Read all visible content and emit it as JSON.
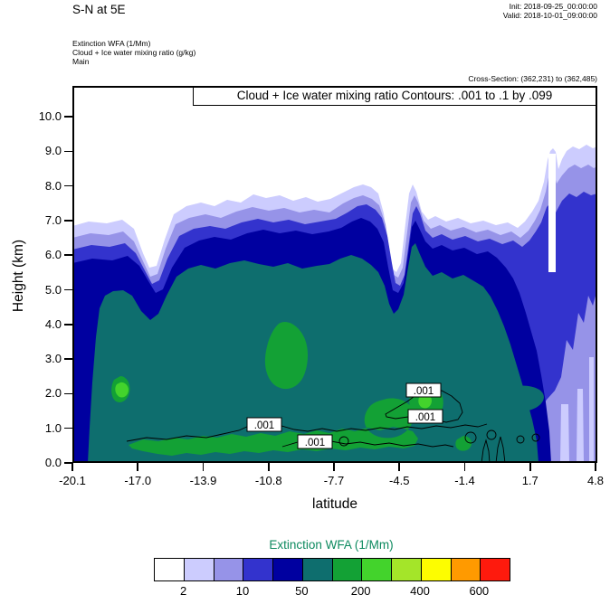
{
  "header": {
    "title": "S-N at 5E",
    "init_line": "Init: 2018-09-25_00:00:00",
    "valid_line": "Valid: 2018-10-01_09:00:00",
    "field_lines": [
      "Extinction WFA  (1/Mm)",
      "Cloud + Ice water mixing ratio   (g/kg)",
      "Main"
    ],
    "cross_section_line": "Cross-Section: (362,231) to (362,485)"
  },
  "plot": {
    "contour_info": "Cloud + Ice water mixing ratio Contours: .001 to .1 by .099",
    "xlabel": "latitude",
    "ylabel": "Height (km)",
    "y_ticks": [
      "0.0",
      "1.0",
      "2.0",
      "3.0",
      "4.0",
      "5.0",
      "6.0",
      "7.0",
      "8.0",
      "9.0",
      "10.0"
    ],
    "x_ticks": [
      "-20.1",
      "-17.0",
      "-13.9",
      "-10.8",
      "-7.7",
      "-4.5",
      "-1.4",
      "1.7",
      "4.8"
    ],
    "contour_labels": [
      ".001",
      ".001",
      ".001",
      ".001"
    ]
  },
  "legend": {
    "title": "Extinction WFA  (1/Mm)",
    "title_color": "#0d8a5f",
    "tick_labels": [
      "2",
      "10",
      "50",
      "200",
      "400",
      "600"
    ],
    "colors": [
      "#ffffff",
      "#ccccfe",
      "#9693e8",
      "#3333cd",
      "#0000a0",
      "#0e6e6e",
      "#13a135",
      "#43d32c",
      "#a4e529",
      "#fdfd00",
      "#ff9a00",
      "#fe1a0d"
    ]
  },
  "chart_data": {
    "type": "heatmap",
    "subtype": "vertical_cross_section_filled_contours",
    "title": "S-N at 5E",
    "init_time": "2018-09-25_00:00:00",
    "valid_time": "2018-10-01_09:00:00",
    "cross_section_gridpoints": "(362,231) to (362,485)",
    "xlabel": "latitude",
    "ylabel": "Height (km)",
    "xlim": [
      -20.1,
      4.8
    ],
    "ylim": [
      0,
      10.9
    ],
    "x_ticks": [
      -20.1,
      -17.0,
      -13.9,
      -10.8,
      -7.7,
      -4.5,
      -1.4,
      1.7,
      4.8
    ],
    "y_ticks": [
      0,
      1,
      2,
      3,
      4,
      5,
      6,
      7,
      8,
      9,
      10
    ],
    "grid": false,
    "legend_position": "bottom",
    "shaded_field": {
      "name": "Extinction WFA",
      "units": "1/Mm",
      "color_levels": [
        2,
        5,
        10,
        20,
        50,
        100,
        200,
        300,
        400,
        500,
        600
      ],
      "labeled_levels": [
        2,
        10,
        50,
        200,
        400,
        600
      ],
      "max_shaded_level_in_view": 200,
      "aerosol_layer_top_km": {
        "latitude": [
          -20.1,
          -18.5,
          -16.3,
          -14.5,
          -12.4,
          -10.3,
          -8.2,
          -6.2,
          -5.2,
          -4.6,
          -3.4,
          -1.4,
          0.6,
          2.7,
          4.8
        ],
        "top_of_2_per_Mm": [
          6.8,
          6.9,
          5.7,
          7.4,
          7.5,
          7.6,
          7.5,
          7.9,
          5.5,
          8.0,
          7.3,
          7.0,
          7.2,
          7.4,
          9.1
        ],
        "top_of_50_per_Mm": [
          4.8,
          4.9,
          4.2,
          5.5,
          5.6,
          5.8,
          5.6,
          5.9,
          4.4,
          6.3,
          5.3,
          4.4,
          3.0,
          1.2,
          0.0
        ]
      },
      "notes": "Extinction above 100 1/Mm in cores near 4 km around lat -11, below 1 km between lat -17 and -5, and near 1-2 km around lat -3.5; layer thins toward lat 4.8 with shallow light shading on the right edge up to ~9 km."
    },
    "contour_field": {
      "name": "Cloud + Ice water mixing ratio",
      "units": "g/kg",
      "contour_start": 0.001,
      "contour_end": 0.1,
      "contour_interval": 0.099,
      "visible_contour_labels": [
        0.001,
        0.001,
        0.001,
        0.001
      ],
      "notes": "0.001 g/kg cloud contours confined below ~2 km between lat -14 and -3"
    }
  }
}
